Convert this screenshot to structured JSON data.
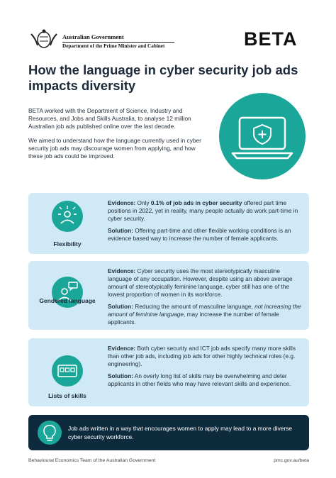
{
  "header": {
    "government": "Australian Government",
    "department": "Department of the Prime Minister and Cabinet",
    "logo": "BETA"
  },
  "title": "How the language in cyber security job ads impacts diversity",
  "intro": [
    "BETA worked with the Department of Science, Industry and Resources, and Jobs and Skills Australia, to analyse 12 million Australian job ads published online over the last decade.",
    "We aimed to understand how the language currently used in cyber security job ads may discourage women from applying, and how these job ads could be improved."
  ],
  "cards": [
    {
      "label": "Flexibility",
      "evidence": {
        "heading": "Evidence:",
        "runs": [
          " Only ",
          "0.1% of job ads in cyber security",
          " offered part time positions in 2022, yet in reality, many people actually do work part-time in cyber security."
        ]
      },
      "solution": {
        "heading": "Solution:",
        "runs": [
          " Offering part-time and other flexible working conditions is an evidence based way to increase the number of female applicants."
        ]
      }
    },
    {
      "label": "Gendered language",
      "evidence": {
        "heading": "Evidence:",
        "runs": [
          " Cyber security uses the most stereotypically masculine language of any occupation. However, despite using an above average amount of stereotypically feminine language, cyber still has one of the lowest proportion of women in its workforce."
        ]
      },
      "solution": {
        "heading": "Solution:",
        "runs": [
          " Reducing the amount of masculine language, ",
          "not increasing the amount of feminine language",
          ", may increase the number of female applicants."
        ]
      }
    },
    {
      "label": "Lists of skills",
      "evidence": {
        "heading": "Evidence:",
        "runs": [
          " Both cyber security and ICT job ads specify many more skills than other job ads, including job ads for other highly technical roles (e.g. engineering)."
        ]
      },
      "solution": {
        "heading": "Solution:",
        "runs": [
          " An overly long list of skills may be overwhelming and deter applicants in other fields who may have relevant skills and experience."
        ]
      }
    }
  ],
  "banner": "Job ads written in a way that encourages women to apply may lead to a more diverse cyber security workforce.",
  "footer": {
    "left": "Behavioural Economics Team of the Australian Government",
    "right": "pmc.gov.au/beta"
  }
}
